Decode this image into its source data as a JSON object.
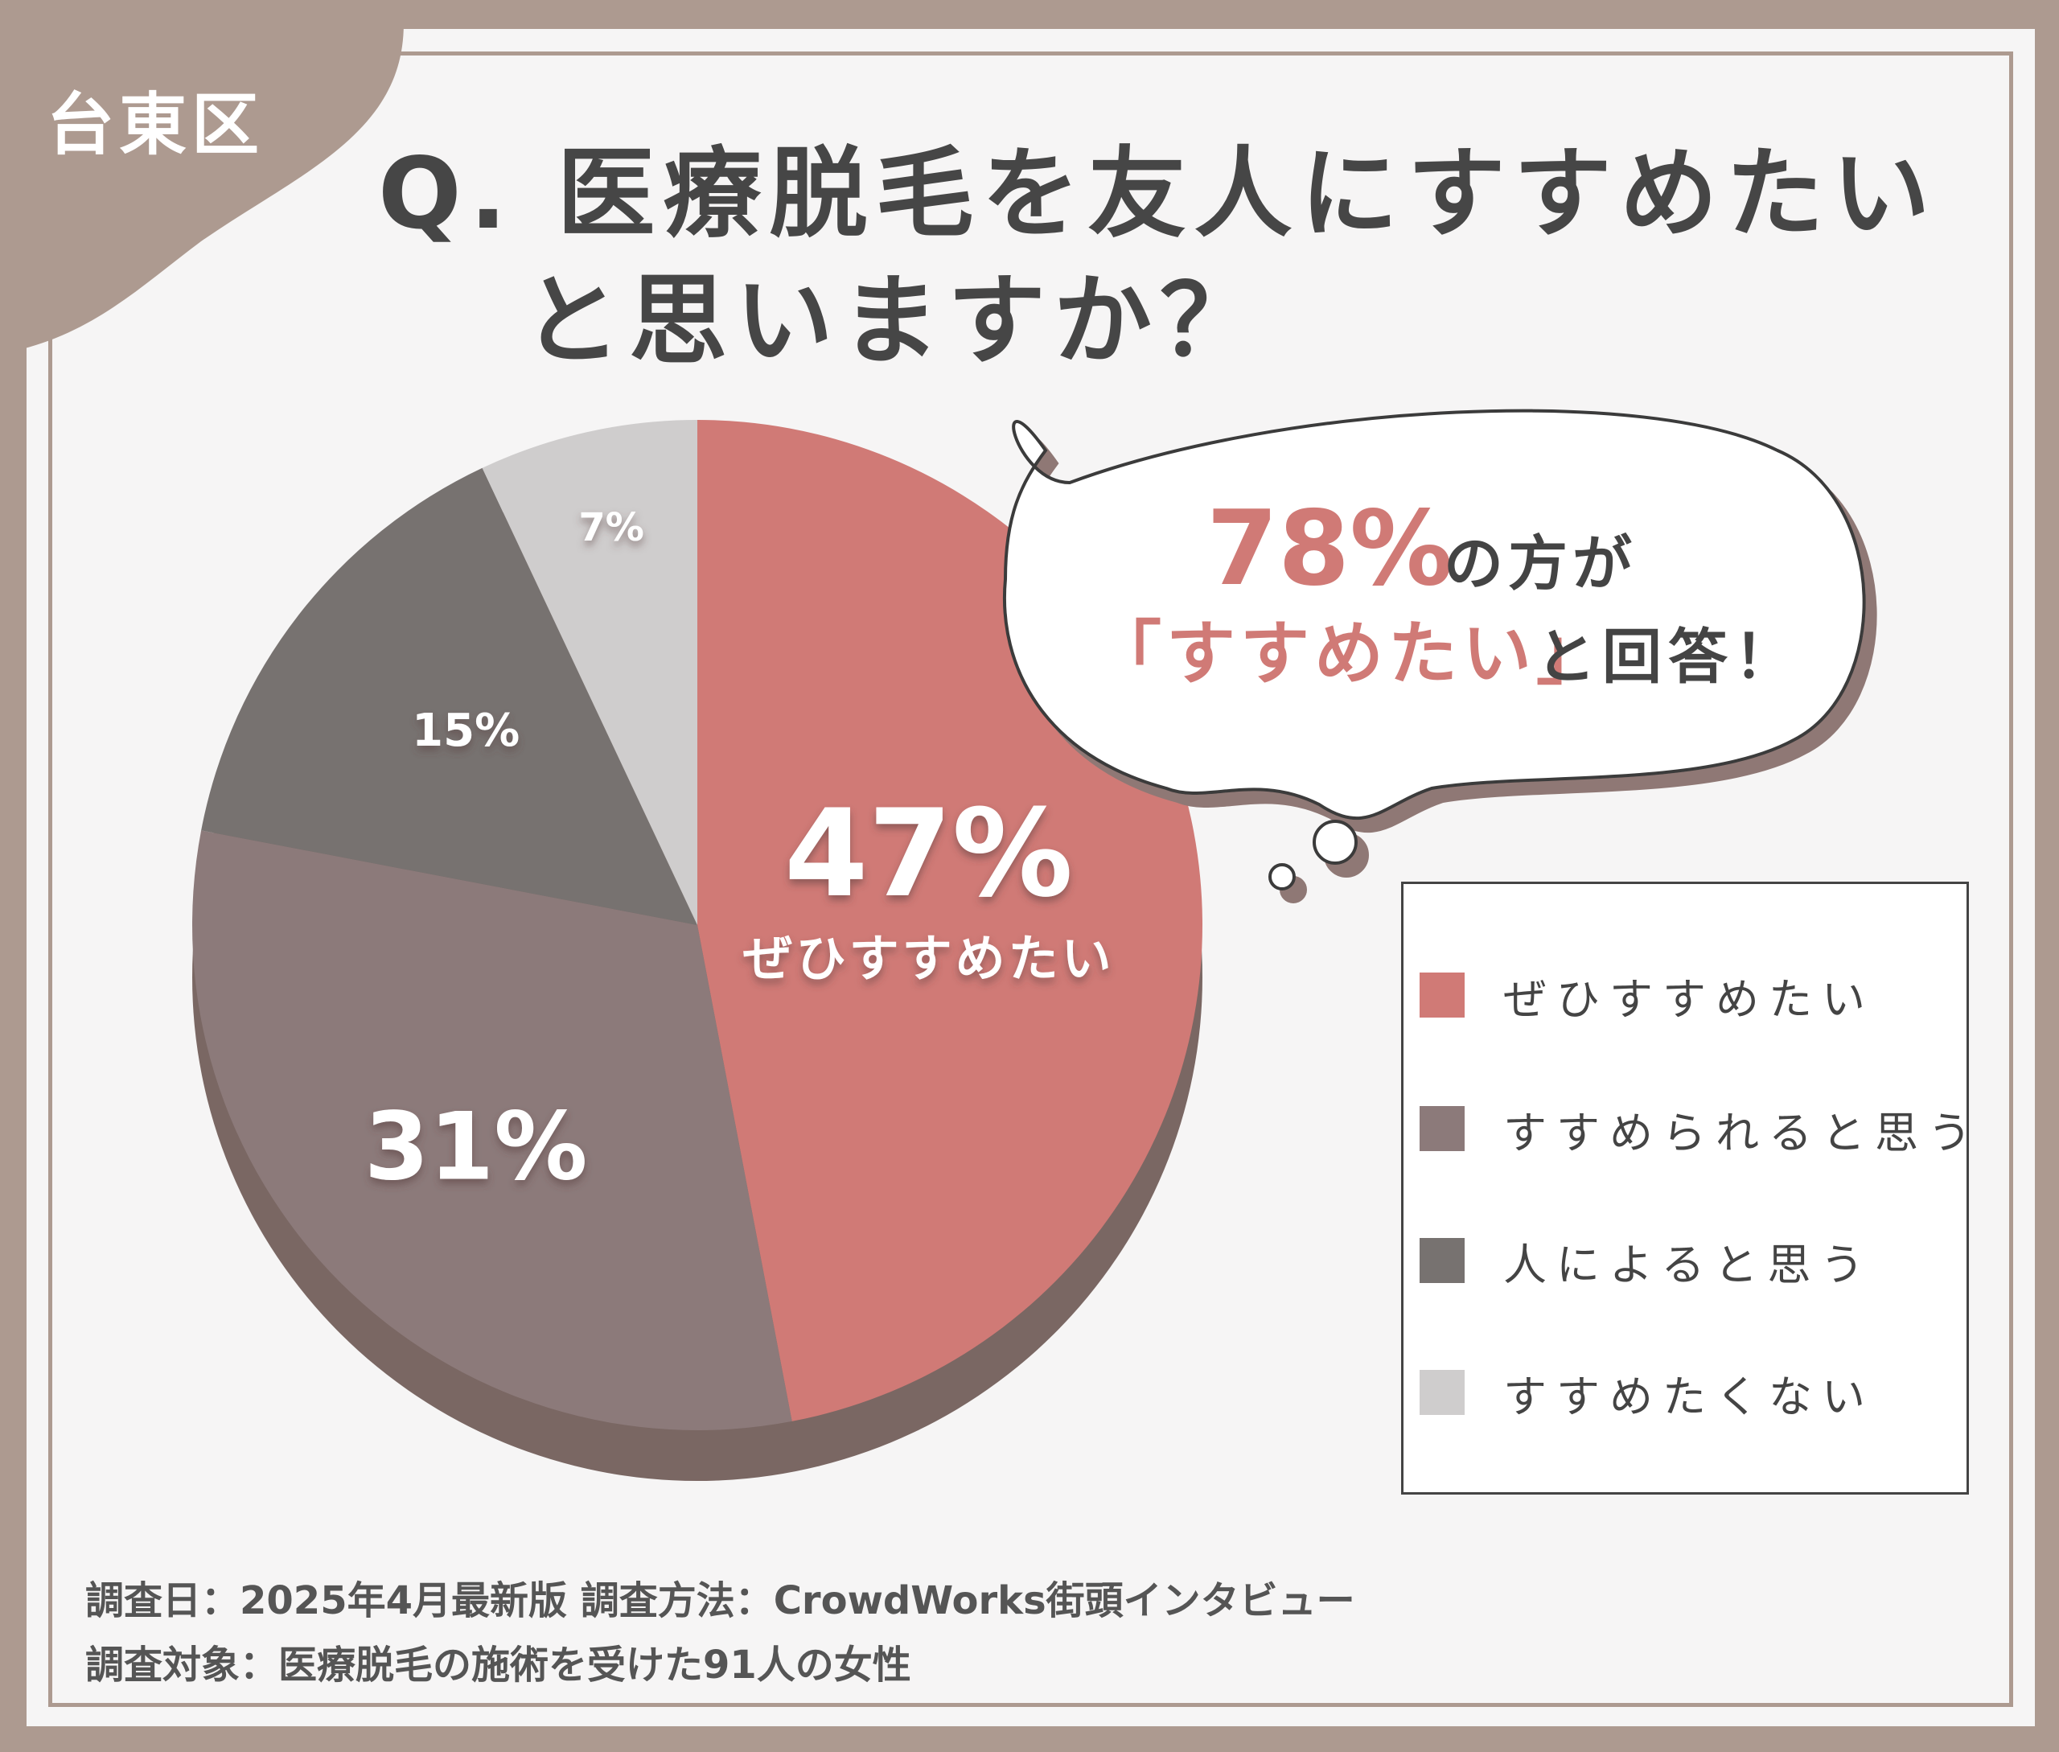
{
  "ward": "台東区",
  "title": {
    "line1": "Q. 医療脱毛を友人にすすめたい",
    "line2": "と思いますか？"
  },
  "bubble": {
    "percent": "78%",
    "suffix": "の方が",
    "quote": "「すすめたい」",
    "tail": "と回答！"
  },
  "pie_labels": {
    "main_percent": "47%",
    "main_caption": "ぜひすすめたい",
    "second_percent": "31%",
    "third_percent": "15%",
    "fourth_percent": "7%"
  },
  "legend": [
    {
      "label": "ぜひすすめたい",
      "color": "#d07a76"
    },
    {
      "label": "すすめられると思う",
      "color": "#8c7a7a"
    },
    {
      "label": "人によると思う",
      "color": "#777270"
    },
    {
      "label": "すすめたくない",
      "color": "#cfcdcd"
    }
  ],
  "footer": {
    "line1": "調査日：2025年4月最新版  調査方法：CrowdWorks街頭インタビュー",
    "line2": "調査対象：医療脱毛の施術を受けた91人の女性"
  },
  "colors": {
    "frame": "#ad9a90",
    "accent": "#d07a76",
    "title_text": "#464646",
    "pie_side": "#7a6763"
  },
  "chart_data": {
    "type": "pie",
    "categories": [
      "ぜひすすめたい",
      "すすめられると思う",
      "人によると思う",
      "すすめたくない"
    ],
    "values": [
      47,
      31,
      15,
      7
    ],
    "value_labels": [
      "47%",
      "31%",
      "15%",
      "7%"
    ],
    "colors": [
      "#d07a76",
      "#8c7a7a",
      "#777270",
      "#cfcdcd"
    ],
    "title": "Q. 医療脱毛を友人にすすめたいと思いますか？",
    "legend_position": "right"
  }
}
